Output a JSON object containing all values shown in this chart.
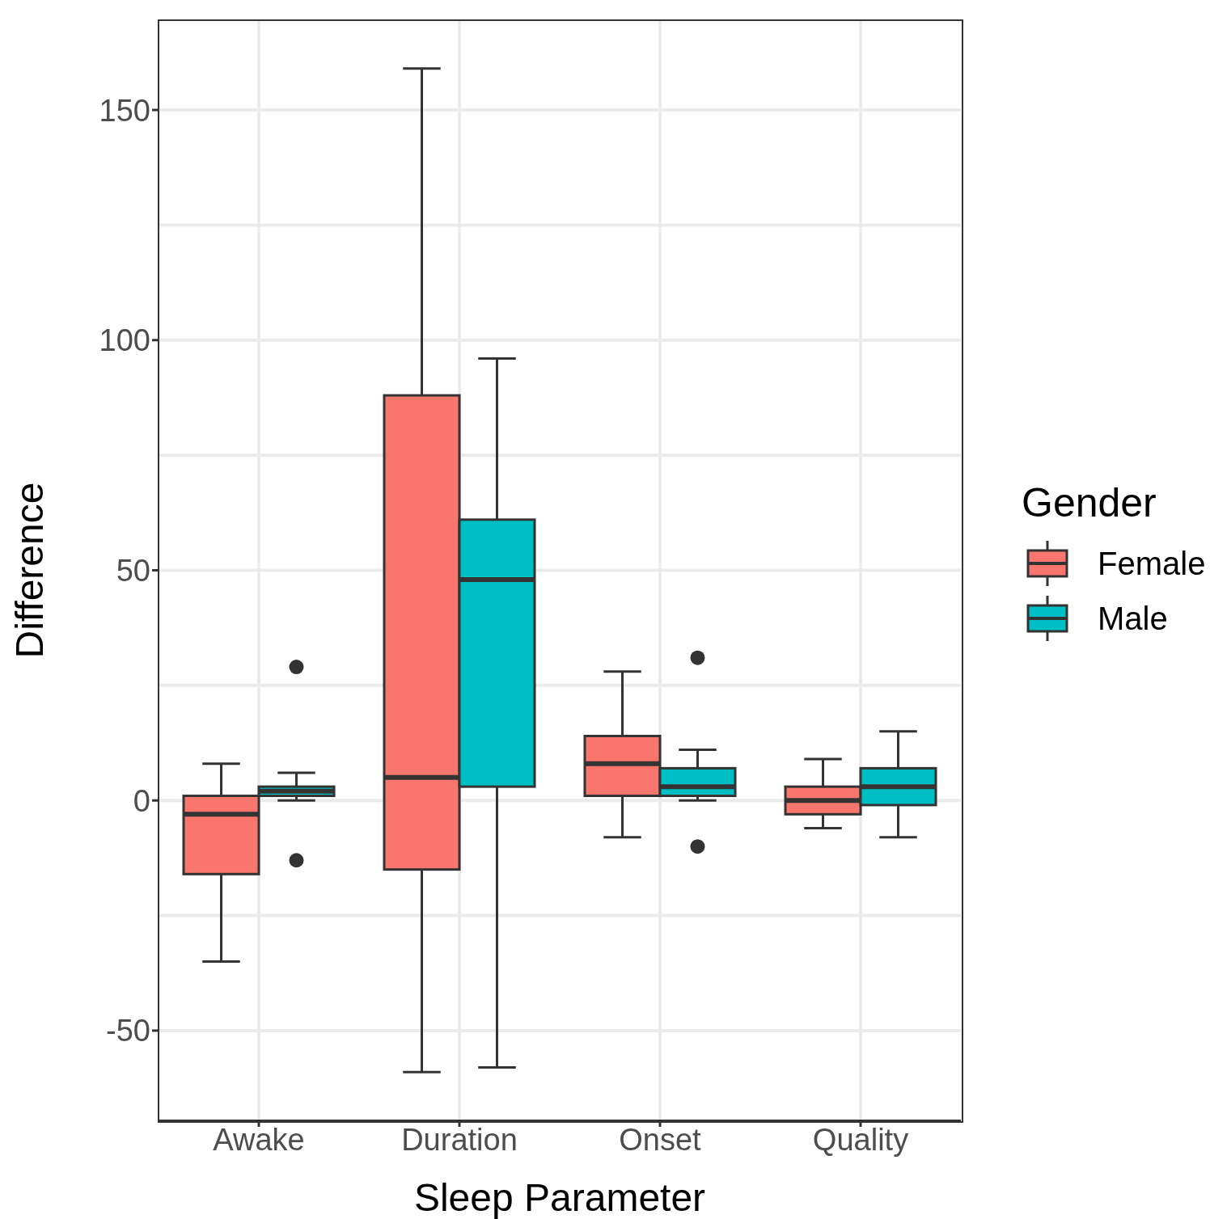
{
  "chart_data": {
    "type": "box",
    "xlabel": "Sleep Parameter",
    "ylabel": "Difference",
    "legend_title": "Gender",
    "legend": "right",
    "grid": true,
    "categories": [
      "Awake",
      "Duration",
      "Onset",
      "Quality"
    ],
    "ylim": [
      -69.5,
      169.5
    ],
    "yticks": [
      -50,
      0,
      50,
      100,
      150
    ],
    "series": [
      {
        "name": "Female",
        "color": "#f8766d",
        "boxes": [
          {
            "low": -35,
            "q1": -16,
            "median": -3,
            "q3": 1,
            "high": 8
          },
          {
            "low": -59,
            "q1": -15,
            "median": 5,
            "q3": 88,
            "high": 159
          },
          {
            "low": -8,
            "q1": 1,
            "median": 8,
            "q3": 14,
            "high": 28
          },
          {
            "low": -6,
            "q1": -3,
            "median": 0,
            "q3": 3,
            "high": 9
          }
        ]
      },
      {
        "name": "Male",
        "color": "#00bfc4",
        "boxes": [
          {
            "low": 0,
            "q1": 1,
            "median": 2,
            "q3": 3,
            "high": 6,
            "outliers": [
              29,
              -13
            ]
          },
          {
            "low": -58,
            "q1": 3,
            "median": 48,
            "q3": 61,
            "high": 96
          },
          {
            "low": 0,
            "q1": 1,
            "median": 3,
            "q3": 7,
            "high": 11,
            "outliers": [
              31,
              -10
            ]
          },
          {
            "low": -8,
            "q1": -1,
            "median": 3,
            "q3": 7,
            "high": 15
          }
        ]
      }
    ]
  }
}
